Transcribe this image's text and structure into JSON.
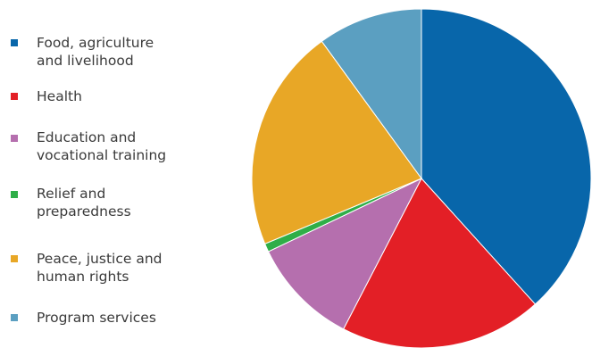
{
  "chart_data": {
    "type": "pie",
    "categories": [
      "Food, agriculture\nand livelihood",
      "Health",
      "Education and\nvocational training",
      "Relief and\npreparedness",
      "Peace, justice and\nhuman rights",
      "Program services"
    ],
    "values": [
      38.3,
      19.3,
      10.3,
      0.8,
      21.3,
      10.0
    ],
    "colors": [
      "#0866aa",
      "#e31f26",
      "#b56fae",
      "#2fae48",
      "#e8a726",
      "#5b9fc1"
    ],
    "legend_position": "left"
  }
}
